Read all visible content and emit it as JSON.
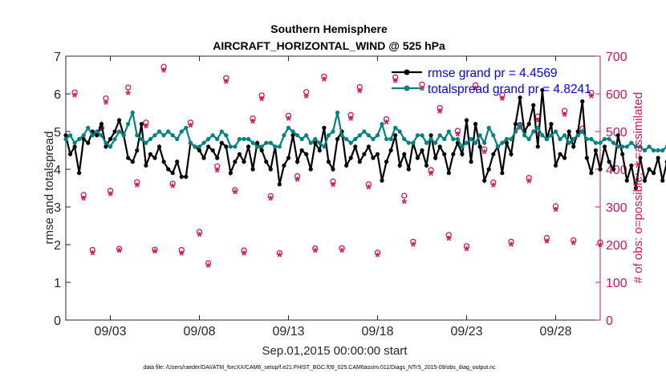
{
  "chart_data": {
    "type": "line",
    "title_line1": "Southern Hemisphere",
    "title_line2": "AIRCRAFT_HORIZONTAL_WIND @ 525 hPa",
    "xlabel": "Sep.01,2015 00:00:00 start",
    "ylabel_left": "rmse and totalspread",
    "ylabel_right": "# of obs: o=possible; ∗=assimilated",
    "footnote": "data file: /Users/raeder/DAI/ATM_forcXX/CAM6_setup/f.e21.FHIST_BGC.f09_025.CAM6assim.011/Diags_NTrS_2015-09/obs_diag_output.nc",
    "xlim": [
      0.5,
      30.5
    ],
    "ylim_left": [
      0,
      7
    ],
    "ylim_right": [
      0,
      700
    ],
    "x_ticks": [
      {
        "v": 3,
        "label": "09/03"
      },
      {
        "v": 8,
        "label": "09/08"
      },
      {
        "v": 13,
        "label": "09/13"
      },
      {
        "v": 18,
        "label": "09/18"
      },
      {
        "v": 23,
        "label": "09/23"
      },
      {
        "v": 28,
        "label": "09/28"
      }
    ],
    "y_ticks_left": [
      0,
      1,
      2,
      3,
      4,
      5,
      6,
      7
    ],
    "y_ticks_right": [
      0,
      100,
      200,
      300,
      400,
      500,
      600,
      700
    ],
    "x_start": 0.5,
    "x_step": 0.25,
    "colors": {
      "rmse": "#000000",
      "totalspread": "#00827f",
      "obs": "#d4145a",
      "legend_text": "#0000ff",
      "axis": "#262626"
    },
    "series": [
      {
        "name": "rmse grand pr = 4.4569",
        "axis": "left",
        "values": [
          4.9,
          4.4,
          4.6,
          3.9,
          4.8,
          4.7,
          5.0,
          4.9,
          5.2,
          4.6,
          4.8,
          5.0,
          5.3,
          4.9,
          4.3,
          4.2,
          4.5,
          5.2,
          4.1,
          4.4,
          4.3,
          4.6,
          4.2,
          4.0,
          3.9,
          4.2,
          3.8,
          3.8,
          4.7,
          4.6,
          4.5,
          4.3,
          4.6,
          4.5,
          4.3,
          4.7,
          4.6,
          3.9,
          4.2,
          4.4,
          4.2,
          4.6,
          4.0,
          4.7,
          4.5,
          4.2,
          4.0,
          4.6,
          3.6,
          4.1,
          4.3,
          4.9,
          4.2,
          4.5,
          4.4,
          4.0,
          4.7,
          4.5,
          5.1,
          4.2,
          4.0,
          4.8,
          5.0,
          4.1,
          4.3,
          4.6,
          4.2,
          4.4,
          4.6,
          4.3,
          4.4,
          3.7,
          4.2,
          4.5,
          4.9,
          4.1,
          4.4,
          4.0,
          4.7,
          4.3,
          4.5,
          4.1,
          4.9,
          4.3,
          4.6,
          4.4,
          3.9,
          4.4,
          4.7,
          4.4,
          5.3,
          4.2,
          5.2,
          4.6,
          3.7,
          4.0,
          4.4,
          4.6,
          3.9,
          4.7,
          4.4,
          5.2,
          5.9,
          5.0,
          5.2,
          5.7,
          4.6,
          6.1,
          4.8,
          5.2,
          4.1,
          4.4,
          4.3,
          5.0,
          4.6,
          5.0,
          5.8,
          4.3,
          3.9,
          4.5,
          4.0,
          4.6,
          4.2,
          4.0,
          4.9,
          4.4,
          3.7,
          4.1,
          3.5,
          4.3,
          3.7,
          4.0,
          3.9,
          4.3,
          3.7,
          4.2,
          3.9,
          4.6,
          3.8,
          4.1,
          3.7,
          3.6,
          3.9,
          3.7,
          3.8,
          3.5,
          3.7,
          4.2,
          4.9
        ]
      },
      {
        "name": "totalspread grand pr = 4.8241",
        "axis": "left",
        "values": [
          4.8,
          4.9,
          4.7,
          4.8,
          4.9,
          5.1,
          4.9,
          5.0,
          4.9,
          4.7,
          4.6,
          4.8,
          5.0,
          4.9,
          5.2,
          5.5,
          4.9,
          4.8,
          4.7,
          4.8,
          4.9,
          5.0,
          4.9,
          5.0,
          4.9,
          4.8,
          5.0,
          5.1,
          4.7,
          4.6,
          4.6,
          4.7,
          4.8,
          4.9,
          4.8,
          5.0,
          4.9,
          4.6,
          4.6,
          4.8,
          4.8,
          4.8,
          4.7,
          4.6,
          4.6,
          4.7,
          4.7,
          4.6,
          4.6,
          4.9,
          5.1,
          5.0,
          4.9,
          4.8,
          4.9,
          4.7,
          4.8,
          4.7,
          4.6,
          4.9,
          5.0,
          5.5,
          4.9,
          4.8,
          4.7,
          4.8,
          4.9,
          5.0,
          4.9,
          4.8,
          4.9,
          5.2,
          4.8,
          4.8,
          5.1,
          5.0,
          4.8,
          4.7,
          4.7,
          4.9,
          4.9,
          4.7,
          4.8,
          4.7,
          4.9,
          4.8,
          5.0,
          4.8,
          4.8,
          4.6,
          4.7,
          4.8,
          4.7,
          4.9,
          4.7,
          5.1,
          4.9,
          4.6,
          4.7,
          4.8,
          4.8,
          5.0,
          5.2,
          4.9,
          4.8,
          5.0,
          5.1,
          4.9,
          4.8,
          4.9,
          5.0,
          4.8,
          4.9,
          4.7,
          4.8,
          4.9,
          5.0,
          4.8,
          4.8,
          4.7,
          4.7,
          4.8,
          4.8,
          4.7,
          4.6,
          4.6,
          4.6,
          4.7,
          4.6,
          4.6,
          4.5,
          4.6,
          4.5,
          4.5,
          4.5,
          4.6,
          4.5,
          4.6,
          4.5,
          4.6,
          5.4,
          4.7,
          4.5,
          4.6,
          4.5,
          4.5,
          4.5,
          4.6,
          4.6,
          4.6
        ]
      }
    ],
    "obs_possible": [
      {
        "x": 1.0,
        "y": 604
      },
      {
        "x": 1.5,
        "y": 332
      },
      {
        "x": 2.0,
        "y": 186
      },
      {
        "x": 2.5,
        "y": 510
      },
      {
        "x": 2.75,
        "y": 588
      },
      {
        "x": 3.0,
        "y": 343
      },
      {
        "x": 3.5,
        "y": 189
      },
      {
        "x": 4.0,
        "y": 617
      },
      {
        "x": 4.5,
        "y": 366
      },
      {
        "x": 5.0,
        "y": 524
      },
      {
        "x": 5.5,
        "y": 187
      },
      {
        "x": 6.0,
        "y": 672
      },
      {
        "x": 6.5,
        "y": 362
      },
      {
        "x": 7.0,
        "y": 186
      },
      {
        "x": 7.5,
        "y": 524
      },
      {
        "x": 8.0,
        "y": 234
      },
      {
        "x": 8.5,
        "y": 151
      },
      {
        "x": 9.0,
        "y": 408
      },
      {
        "x": 9.5,
        "y": 642
      },
      {
        "x": 10.0,
        "y": 345
      },
      {
        "x": 10.5,
        "y": 185
      },
      {
        "x": 11.0,
        "y": 535
      },
      {
        "x": 11.5,
        "y": 596
      },
      {
        "x": 12.0,
        "y": 329
      },
      {
        "x": 12.5,
        "y": 178
      },
      {
        "x": 13.0,
        "y": 542
      },
      {
        "x": 13.5,
        "y": 382
      },
      {
        "x": 14.0,
        "y": 605
      },
      {
        "x": 14.5,
        "y": 190
      },
      {
        "x": 15.0,
        "y": 646
      },
      {
        "x": 15.5,
        "y": 368
      },
      {
        "x": 16.0,
        "y": 191
      },
      {
        "x": 16.5,
        "y": 544
      },
      {
        "x": 17.0,
        "y": 618
      },
      {
        "x": 17.5,
        "y": 360
      },
      {
        "x": 18.0,
        "y": 179
      },
      {
        "x": 18.5,
        "y": 533
      },
      {
        "x": 19.0,
        "y": 644
      },
      {
        "x": 19.5,
        "y": 330
      },
      {
        "x": 20.0,
        "y": 208
      },
      {
        "x": 20.5,
        "y": 625
      },
      {
        "x": 21.0,
        "y": 398
      },
      {
        "x": 21.5,
        "y": 563
      },
      {
        "x": 22.0,
        "y": 226
      },
      {
        "x": 22.5,
        "y": 502
      },
      {
        "x": 23.0,
        "y": 196
      },
      {
        "x": 23.5,
        "y": 623
      },
      {
        "x": 24.0,
        "y": 453
      },
      {
        "x": 24.5,
        "y": 365
      },
      {
        "x": 25.0,
        "y": 597
      },
      {
        "x": 25.5,
        "y": 208
      },
      {
        "x": 26.0,
        "y": 518
      },
      {
        "x": 26.5,
        "y": 377
      },
      {
        "x": 27.0,
        "y": 540
      },
      {
        "x": 27.5,
        "y": 218
      },
      {
        "x": 28.0,
        "y": 302
      },
      {
        "x": 28.5,
        "y": 555
      },
      {
        "x": 29.0,
        "y": 212
      },
      {
        "x": 29.5,
        "y": 508
      },
      {
        "x": 30.0,
        "y": 603
      },
      {
        "x": 30.5,
        "y": 206
      }
    ],
    "obs_assimilated": [
      {
        "x": 1.0,
        "y": 594
      },
      {
        "x": 1.5,
        "y": 320
      },
      {
        "x": 2.0,
        "y": 176
      },
      {
        "x": 2.5,
        "y": 503
      },
      {
        "x": 2.75,
        "y": 575
      },
      {
        "x": 3.0,
        "y": 332
      },
      {
        "x": 3.5,
        "y": 182
      },
      {
        "x": 4.0,
        "y": 600
      },
      {
        "x": 4.5,
        "y": 355
      },
      {
        "x": 5.0,
        "y": 512
      },
      {
        "x": 5.5,
        "y": 180
      },
      {
        "x": 6.0,
        "y": 660
      },
      {
        "x": 6.5,
        "y": 353
      },
      {
        "x": 7.0,
        "y": 174
      },
      {
        "x": 7.5,
        "y": 514
      },
      {
        "x": 8.0,
        "y": 224
      },
      {
        "x": 8.5,
        "y": 143
      },
      {
        "x": 9.0,
        "y": 395
      },
      {
        "x": 9.5,
        "y": 630
      },
      {
        "x": 10.0,
        "y": 337
      },
      {
        "x": 10.5,
        "y": 175
      },
      {
        "x": 11.0,
        "y": 525
      },
      {
        "x": 11.5,
        "y": 584
      },
      {
        "x": 12.0,
        "y": 320
      },
      {
        "x": 12.5,
        "y": 170
      },
      {
        "x": 13.0,
        "y": 532
      },
      {
        "x": 13.5,
        "y": 370
      },
      {
        "x": 14.0,
        "y": 592
      },
      {
        "x": 14.5,
        "y": 182
      },
      {
        "x": 15.0,
        "y": 636
      },
      {
        "x": 15.5,
        "y": 356
      },
      {
        "x": 16.0,
        "y": 182
      },
      {
        "x": 16.5,
        "y": 532
      },
      {
        "x": 17.0,
        "y": 605
      },
      {
        "x": 17.5,
        "y": 350
      },
      {
        "x": 18.0,
        "y": 170
      },
      {
        "x": 18.5,
        "y": 522
      },
      {
        "x": 19.0,
        "y": 632
      },
      {
        "x": 19.5,
        "y": 312
      },
      {
        "x": 20.0,
        "y": 198
      },
      {
        "x": 20.5,
        "y": 612
      },
      {
        "x": 21.0,
        "y": 386
      },
      {
        "x": 21.5,
        "y": 551
      },
      {
        "x": 22.0,
        "y": 214
      },
      {
        "x": 22.5,
        "y": 490
      },
      {
        "x": 23.0,
        "y": 186
      },
      {
        "x": 23.5,
        "y": 612
      },
      {
        "x": 24.0,
        "y": 444
      },
      {
        "x": 24.5,
        "y": 355
      },
      {
        "x": 25.0,
        "y": 585
      },
      {
        "x": 25.5,
        "y": 198
      },
      {
        "x": 26.0,
        "y": 507
      },
      {
        "x": 26.5,
        "y": 366
      },
      {
        "x": 27.0,
        "y": 528
      },
      {
        "x": 27.5,
        "y": 206
      },
      {
        "x": 28.0,
        "y": 290
      },
      {
        "x": 28.5,
        "y": 543
      },
      {
        "x": 29.0,
        "y": 202
      },
      {
        "x": 29.5,
        "y": 498
      },
      {
        "x": 30.0,
        "y": 592
      },
      {
        "x": 30.5,
        "y": 197
      }
    ]
  }
}
